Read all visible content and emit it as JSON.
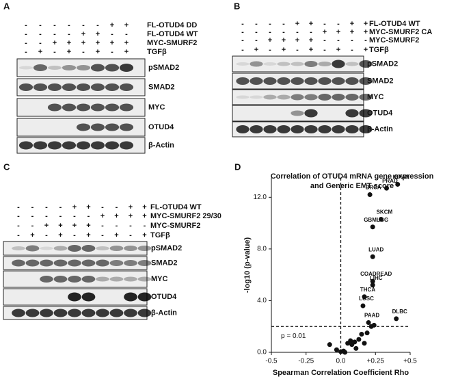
{
  "panels": [
    {
      "letter": "A",
      "treatments": [
        {
          "label": "FL-OTUD4 DD",
          "signs": [
            "-",
            "-",
            "-",
            "-",
            "-",
            "-",
            "+",
            "+"
          ]
        },
        {
          "label": "FL-OTUD4 WT",
          "signs": [
            "-",
            "-",
            "-",
            "-",
            "+",
            "+",
            "-",
            "-"
          ]
        },
        {
          "label": "MYC-SMURF2",
          "signs": [
            "-",
            "-",
            "+",
            "+",
            "+",
            "+",
            "+",
            "+"
          ]
        },
        {
          "label": "TGFβ",
          "signs": [
            "-",
            "+",
            "-",
            "+",
            "-",
            "+",
            "-",
            "+"
          ]
        }
      ],
      "bands": [
        "pSMAD2",
        "SMAD2",
        "MYC",
        "OTUD4",
        "β-Actin"
      ]
    },
    {
      "letter": "B",
      "treatments": [
        {
          "label": "FL-OTUD4 WT",
          "signs": [
            "-",
            "-",
            "-",
            "-",
            "+",
            "+",
            "-",
            "-",
            "+",
            "+"
          ]
        },
        {
          "label": "MYC-SMURF2 CA",
          "signs": [
            "-",
            "-",
            "-",
            "-",
            "-",
            "-",
            "+",
            "+",
            "+",
            "+"
          ]
        },
        {
          "label": "MYC-SMURF2",
          "signs": [
            "-",
            "-",
            "+",
            "+",
            "+",
            "+",
            "-",
            "-",
            "-",
            "-"
          ]
        },
        {
          "label": "TGFβ",
          "signs": [
            "-",
            "+",
            "-",
            "+",
            "-",
            "+",
            "-",
            "+",
            "-",
            "+"
          ]
        }
      ],
      "bands": [
        "pSMAD2",
        "SMAD2",
        "MYC",
        "OTUD4",
        "β-Actin"
      ]
    },
    {
      "letter": "C",
      "treatments": [
        {
          "label": "FL-OTUD4 WT",
          "signs": [
            "-",
            "-",
            "-",
            "-",
            "+",
            "+",
            "-",
            "-",
            "+",
            "+"
          ]
        },
        {
          "label": "MYC-SMURF2 29/30",
          "signs": [
            "-",
            "-",
            "-",
            "-",
            "-",
            "-",
            "+",
            "+",
            "+",
            "+"
          ]
        },
        {
          "label": "MYC-SMURF2",
          "signs": [
            "-",
            "-",
            "+",
            "+",
            "+",
            "+",
            "-",
            "-",
            "-",
            "-"
          ]
        },
        {
          "label": "TGFβ",
          "signs": [
            "-",
            "+",
            "-",
            "+",
            "-",
            "+",
            "-",
            "+",
            "-",
            "+"
          ]
        }
      ],
      "bands": [
        "pSMAD2",
        "SMAD2",
        "MYC",
        "OTUD4",
        "β-Actin"
      ]
    }
  ],
  "chart_data": {
    "type": "scatter",
    "letter": "D",
    "title": [
      "Correlation of OTUD4 mRNA gene expression",
      "and Generic EMT score"
    ],
    "x_label": "Spearman Correlation Coefficient Rho",
    "y_label": "-log10 (p-value)",
    "xlim": [
      -0.5,
      0.5
    ],
    "xticks": [
      -0.5,
      -0.25,
      {
        "value": 0,
        "label": "0.0"
      },
      {
        "value": 0.25,
        "label": "+0.25"
      },
      {
        "value": 0.5,
        "label": "+0.5"
      }
    ],
    "ylim": [
      0,
      13.5
    ],
    "yticks": [
      {
        "value": 0,
        "label": "0.0"
      },
      {
        "value": 4,
        "label": "4.0"
      },
      {
        "value": 8,
        "label": "8.0"
      },
      {
        "value": 12,
        "label": "12.0"
      }
    ],
    "threshold": {
      "value": 2,
      "label": "p = 0.01"
    },
    "reference_x": 0,
    "color": "#111111",
    "x": [
      0.41,
      0.33,
      0.21,
      0.29,
      0.23,
      0.23,
      0.23,
      0.23,
      0.17,
      0.16,
      0.2,
      0.4,
      -0.08,
      -0.03,
      0.0,
      0.02,
      0.05,
      0.07,
      0.08,
      0.1,
      0.11,
      0.13,
      0.15,
      0.17,
      0.19,
      0.22,
      0.24,
      0.03
    ],
    "values": [
      13.0,
      12.7,
      12.2,
      10.3,
      9.7,
      7.4,
      5.5,
      5.2,
      4.3,
      3.6,
      2.3,
      2.6,
      0.6,
      0.2,
      0.05,
      0.1,
      0.7,
      0.9,
      0.6,
      0.8,
      0.3,
      1.0,
      1.4,
      0.7,
      1.5,
      2.0,
      2.1,
      0.0
    ],
    "point_labels": [
      "KIPAN",
      "PRAD",
      "BRCA",
      "SKCM",
      "GBMLGG",
      "LUAD",
      "COADREAD",
      "LIHC",
      "THCA",
      "LUSC",
      "PAAD",
      "DLBC",
      null,
      null,
      null,
      null,
      null,
      null,
      null,
      null,
      null,
      null,
      null,
      null,
      null,
      null,
      null,
      null
    ]
  }
}
